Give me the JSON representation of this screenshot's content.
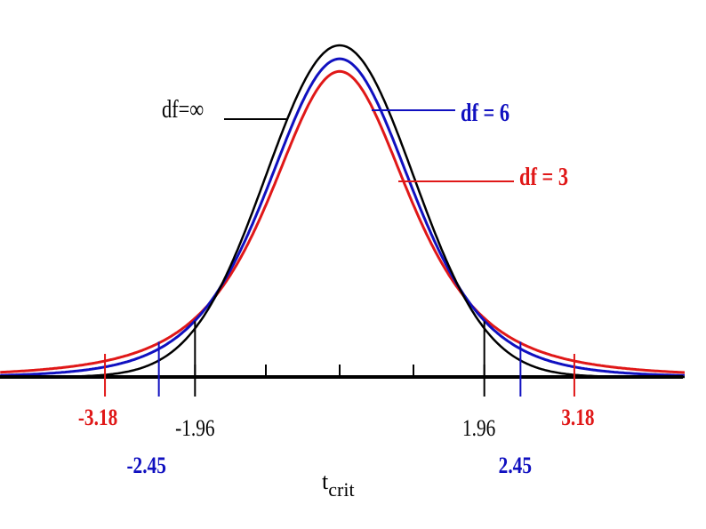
{
  "chart_data": {
    "type": "line",
    "title": "",
    "xlabel": "t",
    "xlabel_sub": "crit",
    "ylabel": "",
    "xlim": [
      -4.6,
      4.75
    ],
    "ylim": [
      0,
      0.42
    ],
    "grid": false,
    "series": [
      {
        "name": "df=∞",
        "df": "inf",
        "color": "#000000"
      },
      {
        "name": "df = 6",
        "df": 6,
        "color": "#1010c0"
      },
      {
        "name": "df = 3",
        "df": 3,
        "color": "#e01818"
      }
    ],
    "ticks": [
      -1.96,
      -1,
      0,
      1,
      1.96
    ],
    "critical_values": [
      {
        "value": -3.18,
        "label": "-3.18",
        "series": 2
      },
      {
        "value": -2.45,
        "label": "-2.45",
        "series": 1
      },
      {
        "value": -1.96,
        "label": "-1.96",
        "series": 0
      },
      {
        "value": 1.96,
        "label": "1.96",
        "series": 0
      },
      {
        "value": 2.45,
        "label": "2.45",
        "series": 1
      },
      {
        "value": 3.18,
        "label": "3.18",
        "series": 2
      }
    ]
  }
}
